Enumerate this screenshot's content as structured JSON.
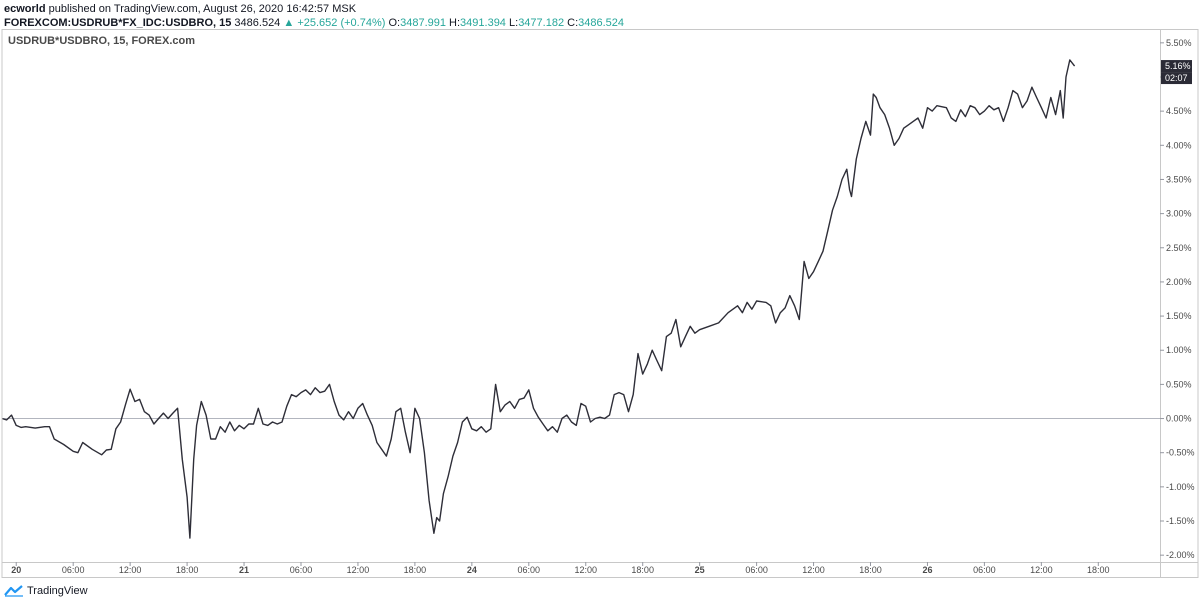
{
  "header": {
    "author": "ecworld",
    "published_text": "published on TradingView.com, August 26, 2020 16:42:57 MSK",
    "symbol_line": "FOREXCOM:USDRUB*FX_IDC:USDBRO, 15",
    "last": "3486.524",
    "change": "+25.652 (+0.74%)",
    "o_label": "O:",
    "o_value": "3487.991",
    "h_label": "H:",
    "h_value": "3491.394",
    "l_label": "L:",
    "l_value": "3477.182",
    "c_label": "C:",
    "c_value": "3486.524"
  },
  "chart_label": "USDRUB*USDBRO, 15, FOREX.com",
  "footer": {
    "brand": "TradingView",
    "brand_icon": "tradingview-logo-icon"
  },
  "colors": {
    "line": "#2e2e38",
    "zero_line": "#b2b5be",
    "grid": "#e8e8e8",
    "frame": "#c8c8c8",
    "price_tag": "#2b2b36",
    "up_green": "#26a69a"
  },
  "chart_data": {
    "type": "line",
    "title": "",
    "xlabel": "",
    "ylabel": "",
    "ylim": [
      -2.1,
      5.6
    ],
    "y_ticks": [
      {
        "value": 5.5,
        "label": "5.50%"
      },
      {
        "value": 5.0,
        "label": "5.00%"
      },
      {
        "value": 4.5,
        "label": "4.50%"
      },
      {
        "value": 4.0,
        "label": "4.00%"
      },
      {
        "value": 3.5,
        "label": "3.50%"
      },
      {
        "value": 3.0,
        "label": "3.00%"
      },
      {
        "value": 2.5,
        "label": "2.50%"
      },
      {
        "value": 2.0,
        "label": "2.00%"
      },
      {
        "value": 1.5,
        "label": "1.50%"
      },
      {
        "value": 1.0,
        "label": "1.00%"
      },
      {
        "value": 0.5,
        "label": "0.50%"
      },
      {
        "value": 0.0,
        "label": "0.00%"
      },
      {
        "value": -0.5,
        "label": "-0.50%"
      },
      {
        "value": -1.0,
        "label": "-1.00%"
      },
      {
        "value": -1.5,
        "label": "-1.50%"
      },
      {
        "value": -2.0,
        "label": "-2.00%"
      }
    ],
    "x_ticks": [
      {
        "t": 0,
        "label": "20"
      },
      {
        "t": 6,
        "label": "06:00"
      },
      {
        "t": 12,
        "label": "12:00"
      },
      {
        "t": 18,
        "label": "18:00"
      },
      {
        "t": 24,
        "label": "21"
      },
      {
        "t": 30,
        "label": "06:00"
      },
      {
        "t": 36,
        "label": "12:00"
      },
      {
        "t": 42,
        "label": "18:00"
      },
      {
        "t": 48,
        "label": "24"
      },
      {
        "t": 54,
        "label": "06:00"
      },
      {
        "t": 60,
        "label": "12:00"
      },
      {
        "t": 66,
        "label": "18:00"
      },
      {
        "t": 72,
        "label": "25"
      },
      {
        "t": 78,
        "label": "06:00"
      },
      {
        "t": 84,
        "label": "12:00"
      },
      {
        "t": 90,
        "label": "18:00"
      },
      {
        "t": 96,
        "label": "26"
      },
      {
        "t": 102,
        "label": "06:00"
      },
      {
        "t": 108,
        "label": "12:00"
      },
      {
        "t": 114,
        "label": "18:00"
      }
    ],
    "x_range": [
      -1.5,
      120.5
    ],
    "series": [
      {
        "points": [
          [
            -1.5,
            0.0
          ],
          [
            -1.0,
            -0.02
          ],
          [
            -0.5,
            0.05
          ],
          [
            0.0,
            -0.1
          ],
          [
            0.5,
            -0.13
          ],
          [
            1.0,
            -0.12
          ],
          [
            2.0,
            -0.14
          ],
          [
            3.0,
            -0.12
          ],
          [
            3.5,
            -0.12
          ],
          [
            4.0,
            -0.3
          ],
          [
            5.0,
            -0.38
          ],
          [
            6.0,
            -0.48
          ],
          [
            6.5,
            -0.5
          ],
          [
            7.0,
            -0.35
          ],
          [
            8.0,
            -0.45
          ],
          [
            9.0,
            -0.53
          ],
          [
            9.5,
            -0.46
          ],
          [
            10.0,
            -0.45
          ],
          [
            10.5,
            -0.15
          ],
          [
            11.0,
            -0.05
          ],
          [
            11.5,
            0.2
          ],
          [
            12.0,
            0.43
          ],
          [
            12.5,
            0.25
          ],
          [
            13.0,
            0.28
          ],
          [
            13.5,
            0.1
          ],
          [
            14.0,
            0.05
          ],
          [
            14.5,
            -0.08
          ],
          [
            15.0,
            0.0
          ],
          [
            15.5,
            0.08
          ],
          [
            16.0,
            0.0
          ],
          [
            16.5,
            0.08
          ],
          [
            17.0,
            0.15
          ],
          [
            17.5,
            -0.6
          ],
          [
            18.0,
            -1.15
          ],
          [
            18.3,
            -1.75
          ],
          [
            18.7,
            -0.6
          ],
          [
            19.0,
            -0.1
          ],
          [
            19.5,
            0.25
          ],
          [
            20.0,
            0.05
          ],
          [
            20.5,
            -0.3
          ],
          [
            21.0,
            -0.3
          ],
          [
            21.5,
            -0.12
          ],
          [
            22.0,
            -0.2
          ],
          [
            22.5,
            -0.05
          ],
          [
            23.0,
            -0.18
          ],
          [
            23.5,
            -0.1
          ],
          [
            24.0,
            -0.15
          ],
          [
            24.5,
            -0.08
          ],
          [
            25.0,
            -0.08
          ],
          [
            25.5,
            0.15
          ],
          [
            26.0,
            -0.08
          ],
          [
            26.5,
            -0.1
          ],
          [
            27.0,
            -0.05
          ],
          [
            27.5,
            -0.08
          ],
          [
            28.0,
            -0.05
          ],
          [
            28.5,
            0.18
          ],
          [
            29.0,
            0.35
          ],
          [
            29.5,
            0.32
          ],
          [
            30.0,
            0.38
          ],
          [
            30.5,
            0.42
          ],
          [
            31.0,
            0.35
          ],
          [
            31.5,
            0.45
          ],
          [
            32.0,
            0.38
          ],
          [
            32.5,
            0.4
          ],
          [
            33.0,
            0.5
          ],
          [
            33.5,
            0.25
          ],
          [
            34.0,
            0.05
          ],
          [
            34.5,
            -0.02
          ],
          [
            35.0,
            0.1
          ],
          [
            35.5,
            0.0
          ],
          [
            36.0,
            0.15
          ],
          [
            36.5,
            0.22
          ],
          [
            37.0,
            0.05
          ],
          [
            37.5,
            -0.1
          ],
          [
            38.0,
            -0.35
          ],
          [
            38.5,
            -0.45
          ],
          [
            39.0,
            -0.55
          ],
          [
            39.5,
            -0.3
          ],
          [
            40.0,
            0.1
          ],
          [
            40.5,
            0.15
          ],
          [
            41.0,
            -0.2
          ],
          [
            41.5,
            -0.5
          ],
          [
            42.0,
            0.15
          ],
          [
            42.5,
            0.0
          ],
          [
            43.0,
            -0.5
          ],
          [
            43.5,
            -1.2
          ],
          [
            44.0,
            -1.68
          ],
          [
            44.3,
            -1.45
          ],
          [
            44.6,
            -1.5
          ],
          [
            45.0,
            -1.1
          ],
          [
            45.5,
            -0.85
          ],
          [
            46.0,
            -0.55
          ],
          [
            46.5,
            -0.35
          ],
          [
            47.0,
            -0.05
          ],
          [
            47.5,
            0.02
          ],
          [
            48.0,
            -0.15
          ],
          [
            48.5,
            -0.18
          ],
          [
            49.0,
            -0.12
          ],
          [
            49.5,
            -0.2
          ],
          [
            50.0,
            -0.15
          ],
          [
            50.5,
            0.5
          ],
          [
            51.0,
            0.1
          ],
          [
            51.5,
            0.2
          ],
          [
            52.0,
            0.25
          ],
          [
            52.5,
            0.15
          ],
          [
            53.0,
            0.28
          ],
          [
            53.5,
            0.3
          ],
          [
            54.0,
            0.42
          ],
          [
            54.5,
            0.15
          ],
          [
            55.0,
            0.02
          ],
          [
            55.5,
            -0.08
          ],
          [
            56.0,
            -0.18
          ],
          [
            56.5,
            -0.12
          ],
          [
            57.0,
            -0.2
          ],
          [
            57.5,
            0.0
          ],
          [
            58.0,
            0.05
          ],
          [
            58.5,
            -0.05
          ],
          [
            59.0,
            -0.1
          ],
          [
            59.5,
            0.22
          ],
          [
            60.0,
            0.18
          ],
          [
            60.5,
            -0.05
          ],
          [
            61.0,
            0.0
          ],
          [
            61.5,
            0.02
          ],
          [
            62.0,
            0.0
          ],
          [
            62.5,
            0.05
          ],
          [
            63.0,
            0.35
          ],
          [
            63.5,
            0.38
          ],
          [
            64.0,
            0.35
          ],
          [
            64.5,
            0.1
          ],
          [
            65.0,
            0.35
          ],
          [
            65.5,
            0.95
          ],
          [
            66.0,
            0.65
          ],
          [
            66.5,
            0.8
          ],
          [
            67.0,
            1.0
          ],
          [
            67.5,
            0.85
          ],
          [
            68.0,
            0.7
          ],
          [
            68.5,
            1.2
          ],
          [
            69.0,
            1.25
          ],
          [
            69.5,
            1.45
          ],
          [
            70.0,
            1.05
          ],
          [
            70.5,
            1.2
          ],
          [
            71.0,
            1.35
          ],
          [
            71.5,
            1.25
          ],
          [
            72.0,
            1.3
          ],
          [
            73.0,
            1.35
          ],
          [
            74.0,
            1.4
          ],
          [
            75.0,
            1.55
          ],
          [
            76.0,
            1.65
          ],
          [
            76.5,
            1.55
          ],
          [
            77.0,
            1.7
          ],
          [
            77.5,
            1.6
          ],
          [
            78.0,
            1.72
          ],
          [
            79.0,
            1.7
          ],
          [
            79.5,
            1.65
          ],
          [
            80.0,
            1.4
          ],
          [
            80.5,
            1.55
          ],
          [
            81.0,
            1.62
          ],
          [
            81.5,
            1.8
          ],
          [
            82.0,
            1.65
          ],
          [
            82.5,
            1.45
          ],
          [
            83.0,
            2.3
          ],
          [
            83.5,
            2.05
          ],
          [
            84.0,
            2.15
          ],
          [
            84.5,
            2.3
          ],
          [
            85.0,
            2.45
          ],
          [
            85.5,
            2.75
          ],
          [
            86.0,
            3.05
          ],
          [
            86.5,
            3.25
          ],
          [
            87.0,
            3.5
          ],
          [
            87.5,
            3.65
          ],
          [
            87.8,
            3.35
          ],
          [
            88.0,
            3.25
          ],
          [
            88.5,
            3.8
          ],
          [
            89.0,
            4.1
          ],
          [
            89.5,
            4.35
          ],
          [
            90.0,
            4.15
          ],
          [
            90.3,
            4.75
          ],
          [
            90.6,
            4.7
          ],
          [
            91.0,
            4.55
          ],
          [
            91.5,
            4.45
          ],
          [
            92.0,
            4.25
          ],
          [
            92.5,
            4.0
          ],
          [
            93.0,
            4.1
          ],
          [
            93.5,
            4.25
          ],
          [
            94.0,
            4.3
          ],
          [
            94.5,
            4.35
          ],
          [
            95.0,
            4.4
          ],
          [
            95.5,
            4.25
          ],
          [
            96.0,
            4.55
          ],
          [
            96.5,
            4.5
          ],
          [
            97.0,
            4.58
          ],
          [
            98.0,
            4.55
          ],
          [
            98.5,
            4.4
          ],
          [
            99.0,
            4.35
          ],
          [
            99.5,
            4.52
          ],
          [
            100.0,
            4.42
          ],
          [
            100.5,
            4.58
          ],
          [
            101.0,
            4.55
          ],
          [
            101.5,
            4.45
          ],
          [
            102.0,
            4.5
          ],
          [
            102.5,
            4.58
          ],
          [
            103.0,
            4.52
          ],
          [
            103.5,
            4.55
          ],
          [
            104.0,
            4.35
          ],
          [
            104.5,
            4.55
          ],
          [
            105.0,
            4.8
          ],
          [
            105.5,
            4.75
          ],
          [
            106.0,
            4.55
          ],
          [
            106.5,
            4.65
          ],
          [
            107.0,
            4.85
          ],
          [
            107.5,
            4.7
          ],
          [
            108.0,
            4.55
          ],
          [
            108.5,
            4.4
          ],
          [
            109.0,
            4.7
          ],
          [
            109.5,
            4.45
          ],
          [
            110.0,
            4.8
          ],
          [
            110.3,
            4.4
          ],
          [
            110.6,
            5.0
          ],
          [
            111.0,
            5.25
          ],
          [
            111.5,
            5.16
          ]
        ]
      }
    ],
    "last_value_label": "5.16%",
    "countdown_label": "02:07",
    "zero_line": 0.0,
    "grid": false,
    "legend": "none"
  }
}
